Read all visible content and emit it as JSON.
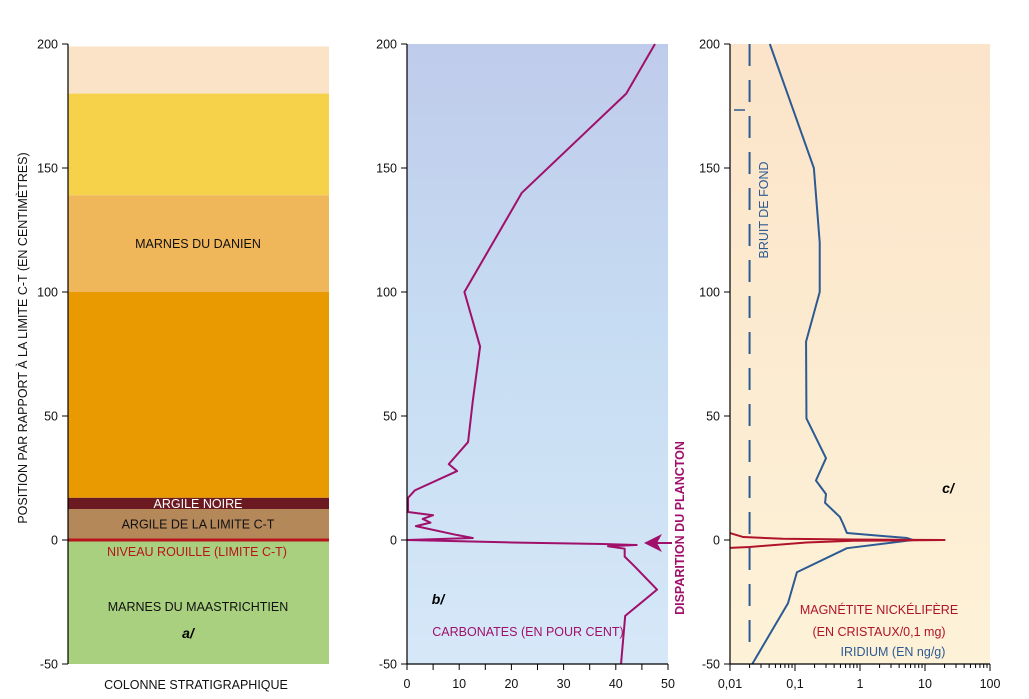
{
  "chart_data": [
    {
      "type": "table",
      "panel": "a",
      "title": "a/",
      "xlabel": "COLONNE STRATIGRAPHIQUE",
      "ylabel": "POSITION PAR RAPPORT À LA LIMITE C-T (EN CENTIMÈTRES)",
      "ylim": [
        -50,
        200
      ],
      "yticks": [
        "200",
        "150",
        "100",
        "50",
        "0",
        "-50"
      ],
      "layers": [
        {
          "label": "",
          "from": 180,
          "to": 199,
          "color": "#fbe3c8"
        },
        {
          "label": "",
          "from": 139,
          "to": 180,
          "color": "#f5d24a"
        },
        {
          "label": "MARNES DU DANIEN",
          "from": 100,
          "to": 139,
          "color": "#f0b65a"
        },
        {
          "label": "",
          "from": 17,
          "to": 100,
          "color": "#e89a00"
        },
        {
          "label": "ARGILE NOIRE",
          "from": 12.5,
          "to": 17,
          "color": "#6b1a22",
          "text_color": "#ffffff"
        },
        {
          "label": "ARGILE DE LA LIMITE C-T",
          "from": 0.5,
          "to": 12.5,
          "color": "#b5885a"
        },
        {
          "label": "MARNES DU MAASTRICHTIEN",
          "from": -50,
          "to": 0,
          "color": "#a8d07e"
        }
      ],
      "boundary_label": "NIVEAU ROUILLE (LIMITE C-T)",
      "boundary_color": "#b8141c"
    },
    {
      "type": "line",
      "panel": "b",
      "title": "b/",
      "xlim": [
        0,
        50
      ],
      "ylim": [
        -50,
        200
      ],
      "xticks": [
        "0",
        "10",
        "20",
        "30",
        "40",
        "50"
      ],
      "yticks": [
        "200",
        "150",
        "100",
        "50",
        "0",
        "-50"
      ],
      "series": [
        {
          "name": "CARBONATES (EN POUR CENT)",
          "color": "#a0106a",
          "points": [
            [
              47.5,
              200
            ],
            [
              42,
              180
            ],
            [
              22,
              140
            ],
            [
              11,
              100
            ],
            [
              14,
              78
            ],
            [
              12.6,
              56
            ],
            [
              11.7,
              39.5
            ],
            [
              8,
              30.6
            ],
            [
              9.6,
              27.8
            ],
            [
              1.5,
              20
            ],
            [
              0.2,
              17
            ],
            [
              0.2,
              11.3
            ],
            [
              5,
              10
            ],
            [
              3,
              8.5
            ],
            [
              4.5,
              7
            ],
            [
              1.7,
              5.6
            ],
            [
              9.6,
              2
            ],
            [
              12.6,
              0.8
            ],
            [
              0,
              0
            ],
            [
              20,
              -1
            ],
            [
              37.5,
              -1.6
            ],
            [
              44,
              -2
            ],
            [
              38.5,
              -2.5
            ],
            [
              41.7,
              -3.5
            ],
            [
              41.7,
              -6.7
            ],
            [
              43.3,
              -10
            ],
            [
              47.9,
              -20
            ],
            [
              41.8,
              -30.6
            ],
            [
              41,
              -50
            ]
          ]
        }
      ],
      "annotation": "DISPARITION DU PLANCTON",
      "annotation_depth": 0
    },
    {
      "type": "line",
      "panel": "c",
      "title": "c/",
      "xscale": "log",
      "xlim": [
        0.01,
        100
      ],
      "ylim": [
        -50,
        200
      ],
      "xticks": [
        "0,01",
        "0,1",
        "1",
        "10",
        "100"
      ],
      "yticks": [
        "200",
        "150",
        "100",
        "50",
        "0",
        "-50"
      ],
      "series": [
        {
          "name": "IRIDIUM (EN ng/g)",
          "color": "#2c5a92",
          "points": [
            [
              0.041,
              200
            ],
            [
              0.195,
              150
            ],
            [
              0.24,
              120
            ],
            [
              0.24,
              100
            ],
            [
              0.148,
              80
            ],
            [
              0.15,
              49
            ],
            [
              0.3,
              33
            ],
            [
              0.21,
              24
            ],
            [
              0.3,
              18.5
            ],
            [
              0.29,
              15
            ],
            [
              0.49,
              9.3
            ],
            [
              0.55,
              6.5
            ],
            [
              0.63,
              2.8
            ],
            [
              5.3,
              0.8
            ],
            [
              6.5,
              0
            ],
            [
              0.63,
              -3.3
            ],
            [
              0.107,
              -13
            ],
            [
              0.078,
              -25.5
            ],
            [
              0.022,
              -50
            ]
          ]
        },
        {
          "name": "MAGNÉTITE NICKÉLIFÈRE",
          "name2": "(EN CRISTAUX/0,1 mg)",
          "color": "#b0142a",
          "points": [
            [
              0.01,
              2.8
            ],
            [
              0.016,
              1.2
            ],
            [
              0.065,
              0.5
            ],
            [
              0.78,
              0.2
            ],
            [
              20,
              0
            ],
            [
              0.78,
              -0.3
            ],
            [
              0.15,
              -1
            ],
            [
              0.02,
              -2.8
            ],
            [
              0.01,
              -3.2
            ]
          ]
        }
      ],
      "reference": {
        "label": "BRUIT DE FOND",
        "value": 0.02
      }
    }
  ]
}
